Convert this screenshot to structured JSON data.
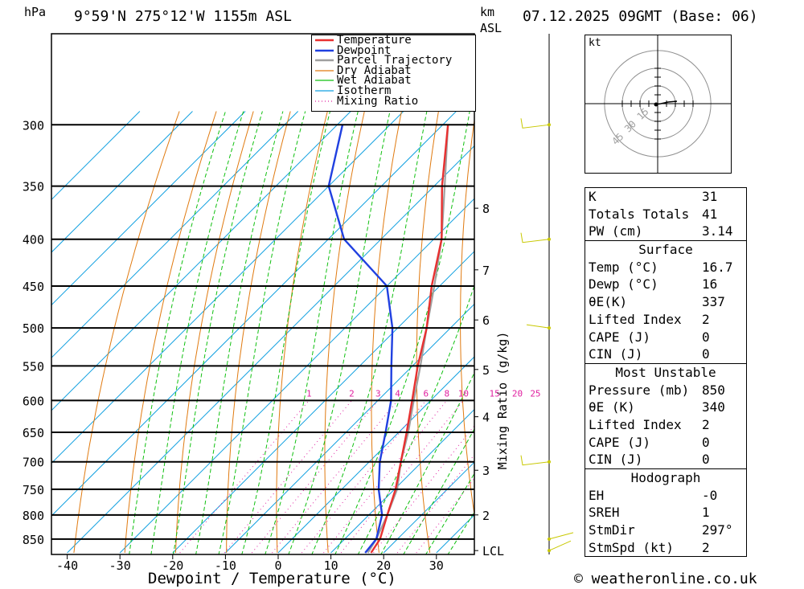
{
  "header": {
    "hpa_unit": "hPa",
    "location": "9°59'N  275°12'W  1155m  ASL",
    "km_label": "km",
    "asl_label": "ASL",
    "datetime": "07.12.2025  09GMT  (Base: 06)"
  },
  "chart_data": {
    "type": "skew-t",
    "xlabel": "Dewpoint / Temperature (°C)",
    "x_ticks": [
      -40,
      -30,
      -20,
      -10,
      0,
      10,
      20,
      30
    ],
    "pressure_levels": [
      300,
      350,
      400,
      450,
      500,
      550,
      600,
      650,
      700,
      750,
      800,
      850
    ],
    "pressure_range": [
      300,
      880
    ],
    "km_ticks": [
      {
        "label": "8",
        "p": 370
      },
      {
        "label": "7",
        "p": 432
      },
      {
        "label": "6",
        "p": 490
      },
      {
        "label": "5",
        "p": 555
      },
      {
        "label": "4",
        "p": 625
      },
      {
        "label": "3",
        "p": 715
      },
      {
        "label": "2",
        "p": 800
      },
      {
        "label": "LCL",
        "p": 875
      }
    ],
    "mixing_ratio_label": "Mixing Ratio (g/kg)",
    "mixing_ratio_values": [
      "1",
      "2",
      "3",
      "4",
      "6",
      "8",
      "10",
      "15",
      "20",
      "25"
    ],
    "legend": [
      "Temperature",
      "Dewpoint",
      "Parcel Trajectory",
      "Dry Adiabat",
      "Wet Adiabat",
      "Isotherm",
      "Mixing Ratio"
    ],
    "temperature": [
      [
        880,
        17.6
      ],
      [
        850,
        16.7
      ],
      [
        800,
        13.5
      ],
      [
        750,
        10.2
      ],
      [
        700,
        6
      ],
      [
        650,
        1.5
      ],
      [
        600,
        -3.5
      ],
      [
        550,
        -9
      ],
      [
        500,
        -14.5
      ],
      [
        450,
        -21.5
      ],
      [
        400,
        -28.5
      ],
      [
        350,
        -38.5
      ],
      [
        300,
        -49
      ]
    ],
    "dewpoint": [
      [
        880,
        16.5
      ],
      [
        850,
        16
      ],
      [
        800,
        12.5
      ],
      [
        750,
        7
      ],
      [
        700,
        2
      ],
      [
        650,
        -2.5
      ],
      [
        600,
        -7.5
      ],
      [
        550,
        -14
      ],
      [
        500,
        -21
      ],
      [
        450,
        -30
      ],
      [
        400,
        -47
      ],
      [
        350,
        -60
      ],
      [
        300,
        -69
      ]
    ],
    "parcel": [
      [
        880,
        17
      ],
      [
        850,
        16
      ],
      [
        800,
        13.5
      ],
      [
        750,
        10.5
      ],
      [
        700,
        6
      ],
      [
        650,
        1.8
      ],
      [
        600,
        -3.2
      ],
      [
        550,
        -8.5
      ],
      [
        500,
        -14.5
      ],
      [
        450,
        -21
      ],
      [
        400,
        -28.5
      ],
      [
        350,
        -38
      ],
      [
        300,
        -49
      ]
    ]
  },
  "hodograph": {
    "unit": "kt",
    "ring_labels": [
      "15",
      "30",
      "45"
    ]
  },
  "indices": [
    {
      "label": "K",
      "value": "31"
    },
    {
      "label": "Totals Totals",
      "value": "41"
    },
    {
      "label": "PW (cm)",
      "value": "3.14"
    }
  ],
  "surface": {
    "title": "Surface",
    "rows": [
      {
        "label": "Temp (°C)",
        "value": "16.7"
      },
      {
        "label": "Dewp (°C)",
        "value": "16"
      },
      {
        "label": "θE(K)",
        "value": "337"
      },
      {
        "label": "Lifted Index",
        "value": "2"
      },
      {
        "label": "CAPE (J)",
        "value": "0"
      },
      {
        "label": "CIN (J)",
        "value": "0"
      }
    ]
  },
  "most_unstable": {
    "title": "Most Unstable",
    "rows": [
      {
        "label": "Pressure (mb)",
        "value": "850"
      },
      {
        "label": "θE (K)",
        "value": "340"
      },
      {
        "label": "Lifted Index",
        "value": "2"
      },
      {
        "label": "CAPE (J)",
        "value": "0"
      },
      {
        "label": "CIN (J)",
        "value": "0"
      }
    ]
  },
  "hodograph_stats": {
    "title": "Hodograph",
    "rows": [
      {
        "label": "EH",
        "value": "-0"
      },
      {
        "label": "SREH",
        "value": "1"
      },
      {
        "label": "StmDir",
        "value": "297°"
      },
      {
        "label": "StmSpd (kt)",
        "value": "2"
      }
    ]
  },
  "colors": {
    "temperature": "#e83030",
    "dewpoint": "#2040e0",
    "parcel": "#a0a0a0",
    "dry_adiabat": "#e07a10",
    "wet_adiabat": "#10c010",
    "isotherm": "#10a0e0",
    "mixing_ratio": "#e020a0"
  },
  "copyright": "© weatheronline.co.uk"
}
